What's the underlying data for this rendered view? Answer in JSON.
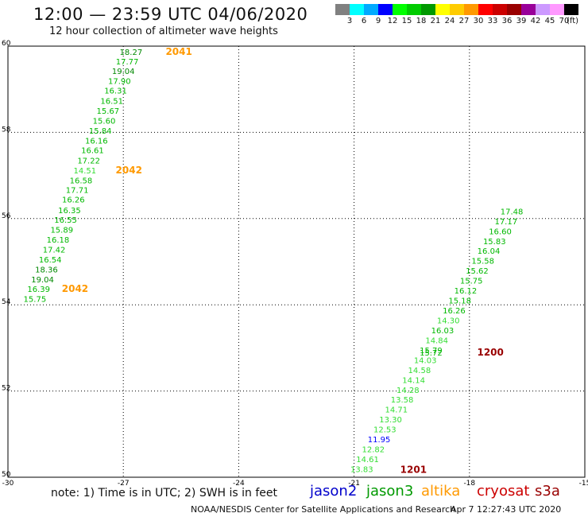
{
  "header": {
    "title": "12:00 — 23:59 UTC 04/06/2020",
    "subtitle": "12 hour collection of altimeter wave heights"
  },
  "color_scale": {
    "unit": "(ft)",
    "colors": [
      "#808080",
      "#00ffff",
      "#00aaff",
      "#0000ff",
      "#00ff00",
      "#00cc00",
      "#009900",
      "#ffff00",
      "#ffcc00",
      "#ff9900",
      "#ff0000",
      "#cc0000",
      "#990000",
      "#990099",
      "#cc99ff",
      "#ff99ff",
      "#000000"
    ],
    "labels": [
      "3",
      "6",
      "9",
      "12",
      "15",
      "18",
      "21",
      "24",
      "27",
      "30",
      "33",
      "36",
      "39",
      "42",
      "45",
      "70"
    ]
  },
  "axes": {
    "lon_ticks": [
      "-30",
      "-27",
      "-24",
      "-21",
      "-18",
      "-15"
    ],
    "lat_ticks": [
      "60",
      "58",
      "56",
      "54",
      "52",
      "50"
    ]
  },
  "chart_data": {
    "type": "scatter",
    "x_range": [
      -30,
      -15
    ],
    "y_range": [
      50,
      60
    ],
    "tracks": [
      {
        "points": [
          {
            "lon": -26.8,
            "lat": 59.8,
            "swh": "18.27"
          },
          {
            "lon": -26.9,
            "lat": 59.58,
            "swh": "17.77"
          },
          {
            "lon": -27.0,
            "lat": 59.35,
            "swh": "19.04"
          },
          {
            "lon": -27.1,
            "lat": 59.12,
            "swh": "17.90"
          },
          {
            "lon": -27.2,
            "lat": 58.9,
            "swh": "16.31"
          },
          {
            "lon": -27.3,
            "lat": 58.66,
            "swh": "16.51"
          },
          {
            "lon": -27.4,
            "lat": 58.43,
            "swh": "15.67"
          },
          {
            "lon": -27.5,
            "lat": 58.2,
            "swh": "15.60"
          },
          {
            "lon": -27.6,
            "lat": 57.97,
            "swh": "15.84"
          },
          {
            "lon": -27.7,
            "lat": 57.74,
            "swh": "16.16"
          },
          {
            "lon": -27.8,
            "lat": 57.52,
            "swh": "16.61"
          },
          {
            "lon": -27.9,
            "lat": 57.28,
            "swh": "17.22"
          },
          {
            "lon": -28.0,
            "lat": 57.05,
            "swh": "14.51"
          },
          {
            "lon": -28.1,
            "lat": 56.82,
            "swh": "16.58"
          },
          {
            "lon": -28.2,
            "lat": 56.6,
            "swh": "17.71"
          },
          {
            "lon": -28.3,
            "lat": 56.37,
            "swh": "16.26"
          },
          {
            "lon": -28.4,
            "lat": 56.13,
            "swh": "16.35"
          },
          {
            "lon": -28.5,
            "lat": 55.9,
            "swh": "16.55"
          },
          {
            "lon": -28.6,
            "lat": 55.67,
            "swh": "15.89"
          },
          {
            "lon": -28.7,
            "lat": 55.44,
            "swh": "16.18"
          },
          {
            "lon": -28.8,
            "lat": 55.21,
            "swh": "17.42"
          },
          {
            "lon": -28.9,
            "lat": 54.98,
            "swh": "16.54"
          },
          {
            "lon": -29.0,
            "lat": 54.75,
            "swh": "18.36"
          },
          {
            "lon": -29.1,
            "lat": 54.52,
            "swh": "19.04"
          },
          {
            "lon": -29.2,
            "lat": 54.3,
            "swh": "16.39"
          },
          {
            "lon": -29.3,
            "lat": 54.07,
            "swh": "15.75"
          }
        ],
        "time_labels": [
          {
            "text": "2041",
            "lon": -25.9,
            "lat": 59.8
          },
          {
            "text": "2042",
            "lon": -27.2,
            "lat": 57.05
          },
          {
            "text": "2042",
            "lon": -28.6,
            "lat": 54.3
          }
        ]
      },
      {
        "points": [
          {
            "lon": -16.9,
            "lat": 56.1,
            "swh": "17.48"
          },
          {
            "lon": -17.05,
            "lat": 55.87,
            "swh": "17.17"
          },
          {
            "lon": -17.2,
            "lat": 55.64,
            "swh": "16.60"
          },
          {
            "lon": -17.35,
            "lat": 55.41,
            "swh": "15.83"
          },
          {
            "lon": -17.5,
            "lat": 55.18,
            "swh": "16.04"
          },
          {
            "lon": -17.65,
            "lat": 54.95,
            "swh": "15.58"
          },
          {
            "lon": -17.8,
            "lat": 54.72,
            "swh": "15.62"
          },
          {
            "lon": -17.95,
            "lat": 54.49,
            "swh": "15.75"
          },
          {
            "lon": -18.1,
            "lat": 54.26,
            "swh": "16.12"
          },
          {
            "lon": -18.25,
            "lat": 54.03,
            "swh": "15.18"
          },
          {
            "lon": -18.4,
            "lat": 53.8,
            "swh": "16.26"
          },
          {
            "lon": -18.55,
            "lat": 53.57,
            "swh": "14.30"
          },
          {
            "lon": -18.7,
            "lat": 53.34,
            "swh": "16.03"
          },
          {
            "lon": -18.85,
            "lat": 53.11,
            "swh": "14.84"
          },
          {
            "lon": -19.0,
            "lat": 52.88,
            "swh": "15.79"
          },
          {
            "lon": -19.0,
            "lat": 52.82,
            "swh": "15.72"
          },
          {
            "lon": -19.15,
            "lat": 52.65,
            "swh": "14.03"
          },
          {
            "lon": -19.3,
            "lat": 52.42,
            "swh": "14.58"
          },
          {
            "lon": -19.45,
            "lat": 52.19,
            "swh": "14.14"
          },
          {
            "lon": -19.6,
            "lat": 51.96,
            "swh": "14.28"
          },
          {
            "lon": -19.75,
            "lat": 51.73,
            "swh": "13.58"
          },
          {
            "lon": -19.9,
            "lat": 51.5,
            "swh": "14.71"
          },
          {
            "lon": -20.05,
            "lat": 51.27,
            "swh": "13.30"
          },
          {
            "lon": -20.2,
            "lat": 51.04,
            "swh": "12.53"
          },
          {
            "lon": -20.35,
            "lat": 50.81,
            "swh": "11.95"
          },
          {
            "lon": -20.5,
            "lat": 50.58,
            "swh": "12.82"
          },
          {
            "lon": -20.65,
            "lat": 50.35,
            "swh": "14.61"
          },
          {
            "lon": -20.8,
            "lat": 50.12,
            "swh": "13.83"
          }
        ],
        "time_labels": [
          {
            "text": "1200",
            "lon": -17.8,
            "lat": 52.82
          },
          {
            "text": "1201",
            "lon": -19.8,
            "lat": 50.1
          }
        ]
      }
    ]
  },
  "footer": {
    "note": "note:  1) Time is in UTC;  2) SWH is in feet",
    "satellites": [
      {
        "name": "jason2",
        "color": "#0000cc"
      },
      {
        "name": "jason3",
        "color": "#009900"
      },
      {
        "name": "altika",
        "color": "#ff9900"
      },
      {
        "name": "cryosat",
        "color": "#cc0000"
      },
      {
        "name": "s3a",
        "color": "#990000"
      }
    ],
    "credit": "NOAA/NESDIS Center for Satellite Applications and Research",
    "timestamp": "Apr  7 12:27:43 UTC 2020"
  }
}
